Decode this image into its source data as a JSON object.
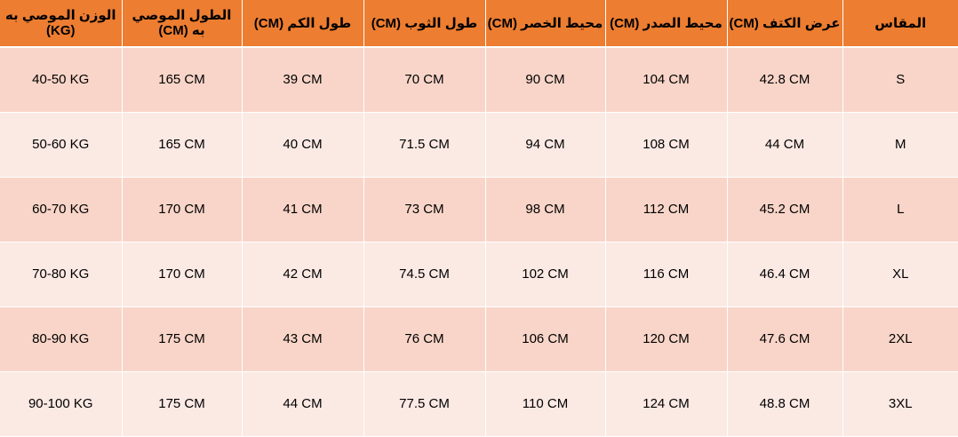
{
  "table": {
    "headers": [
      "الوزن الموصي به (KG)",
      "الطول الموصي به (CM)",
      "طول الكم (CM)",
      "طول الثوب (CM)",
      "محيط الخصر (CM)",
      "محيط الصدر (CM)",
      "عرض الكتف (CM)",
      "المقاس"
    ],
    "rows": [
      [
        "40-50 KG",
        "165 CM",
        "39 CM",
        "70 CM",
        "90 CM",
        "104 CM",
        "42.8 CM",
        "S"
      ],
      [
        "50-60 KG",
        "165 CM",
        "40 CM",
        "71.5 CM",
        "94 CM",
        "108 CM",
        "44 CM",
        "M"
      ],
      [
        "60-70 KG",
        "170 CM",
        "41 CM",
        "73 CM",
        "98 CM",
        "112 CM",
        "45.2 CM",
        "L"
      ],
      [
        "70-80 KG",
        "170 CM",
        "42 CM",
        "74.5 CM",
        "102 CM",
        "116 CM",
        "46.4 CM",
        "XL"
      ],
      [
        "80-90 KG",
        "175 CM",
        "43 CM",
        "76 CM",
        "106 CM",
        "120 CM",
        "47.6 CM",
        "2XL"
      ],
      [
        "90-100 KG",
        "175 CM",
        "44 CM",
        "77.5 CM",
        "110 CM",
        "124 CM",
        "48.8 CM",
        "3XL"
      ]
    ]
  },
  "colors": {
    "header_bg": "#ed7d31",
    "row_odd_bg": "#f8d5c8",
    "row_even_bg": "#fbe9e4"
  }
}
